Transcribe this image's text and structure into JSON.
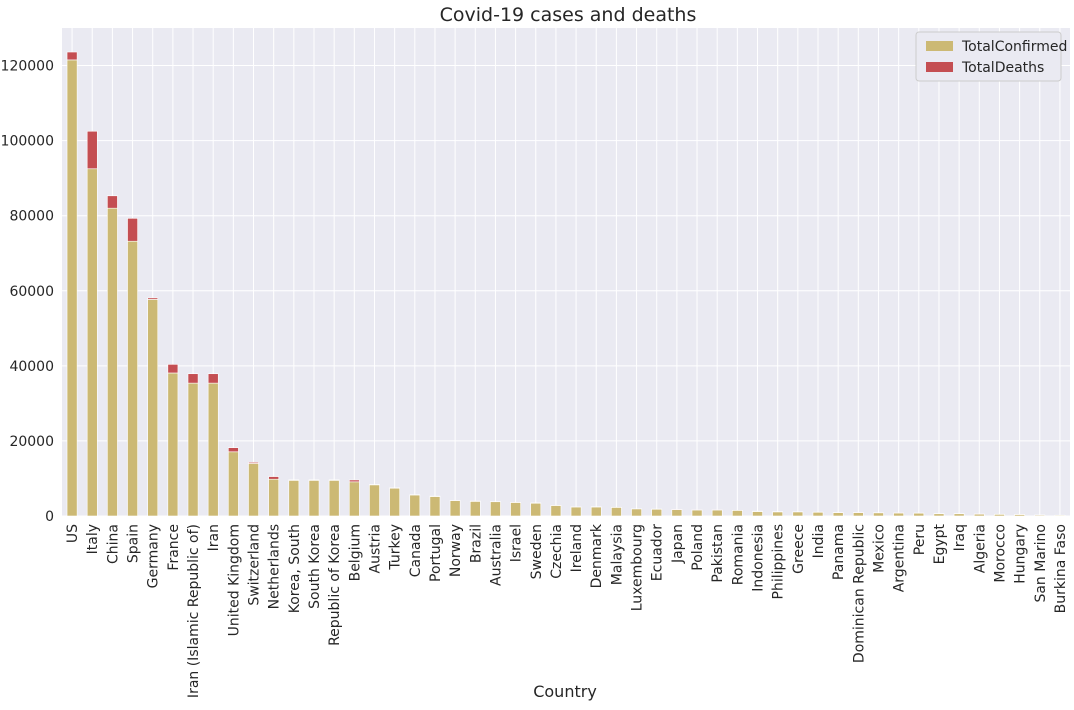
{
  "chart_data": {
    "type": "bar",
    "stacked": true,
    "title": "Covid-19 cases and deaths",
    "xlabel": "Country",
    "ylabel": "",
    "ylim": [
      0,
      130000
    ],
    "yticks": [
      0,
      20000,
      40000,
      60000,
      80000,
      100000,
      120000
    ],
    "grid": true,
    "legend_position": "top-right",
    "colors": {
      "background": "#eaeaf2",
      "grid": "#ffffff",
      "TotalConfirmed": "#ccb974",
      "TotalDeaths": "#c44e52",
      "text": "#262626"
    },
    "categories": [
      "US",
      "Italy",
      "China",
      "Spain",
      "Germany",
      "France",
      "Iran (Islamic Republic of)",
      "Iran",
      "United Kingdom",
      "Switzerland",
      "Netherlands",
      "Korea, South",
      "South Korea",
      "Republic of Korea",
      "Belgium",
      "Austria",
      "Turkey",
      "Canada",
      "Portugal",
      "Norway",
      "Brazil",
      "Australia",
      "Israel",
      "Sweden",
      "Czechia",
      "Ireland",
      "Denmark",
      "Malaysia",
      "Luxembourg",
      "Ecuador",
      "Japan",
      "Poland",
      "Pakistan",
      "Romania",
      "Indonesia",
      "Philippines",
      "Greece",
      "India",
      "Panama",
      "Dominican Republic",
      "Mexico",
      "Argentina",
      "Peru",
      "Egypt",
      "Iraq",
      "Algeria",
      "Morocco",
      "Hungary",
      "San Marino",
      "Burkina Faso"
    ],
    "series": [
      {
        "name": "TotalConfirmed",
        "values": [
          121500,
          92500,
          82000,
          73200,
          57700,
          38100,
          35400,
          35400,
          17100,
          14000,
          9800,
          9500,
          9500,
          9500,
          9100,
          8300,
          7400,
          5600,
          5200,
          4100,
          3900,
          3800,
          3600,
          3400,
          2800,
          2400,
          2400,
          2300,
          1900,
          1800,
          1700,
          1600,
          1600,
          1500,
          1200,
          1100,
          1100,
          1000,
          900,
          900,
          850,
          800,
          750,
          600,
          600,
          500,
          450,
          400,
          250,
          200
        ]
      },
      {
        "name": "TotalDeaths",
        "values": [
          2100,
          10000,
          3300,
          6100,
          400,
          2300,
          2500,
          2500,
          1100,
          300,
          700,
          150,
          150,
          150,
          500,
          90,
          110,
          60,
          100,
          25,
          110,
          20,
          15,
          110,
          30,
          40,
          70,
          30,
          20,
          50,
          50,
          20,
          20,
          30,
          100,
          70,
          30,
          30,
          20,
          40,
          20,
          20,
          20,
          40,
          40,
          40,
          30,
          15,
          20,
          10
        ]
      }
    ]
  }
}
